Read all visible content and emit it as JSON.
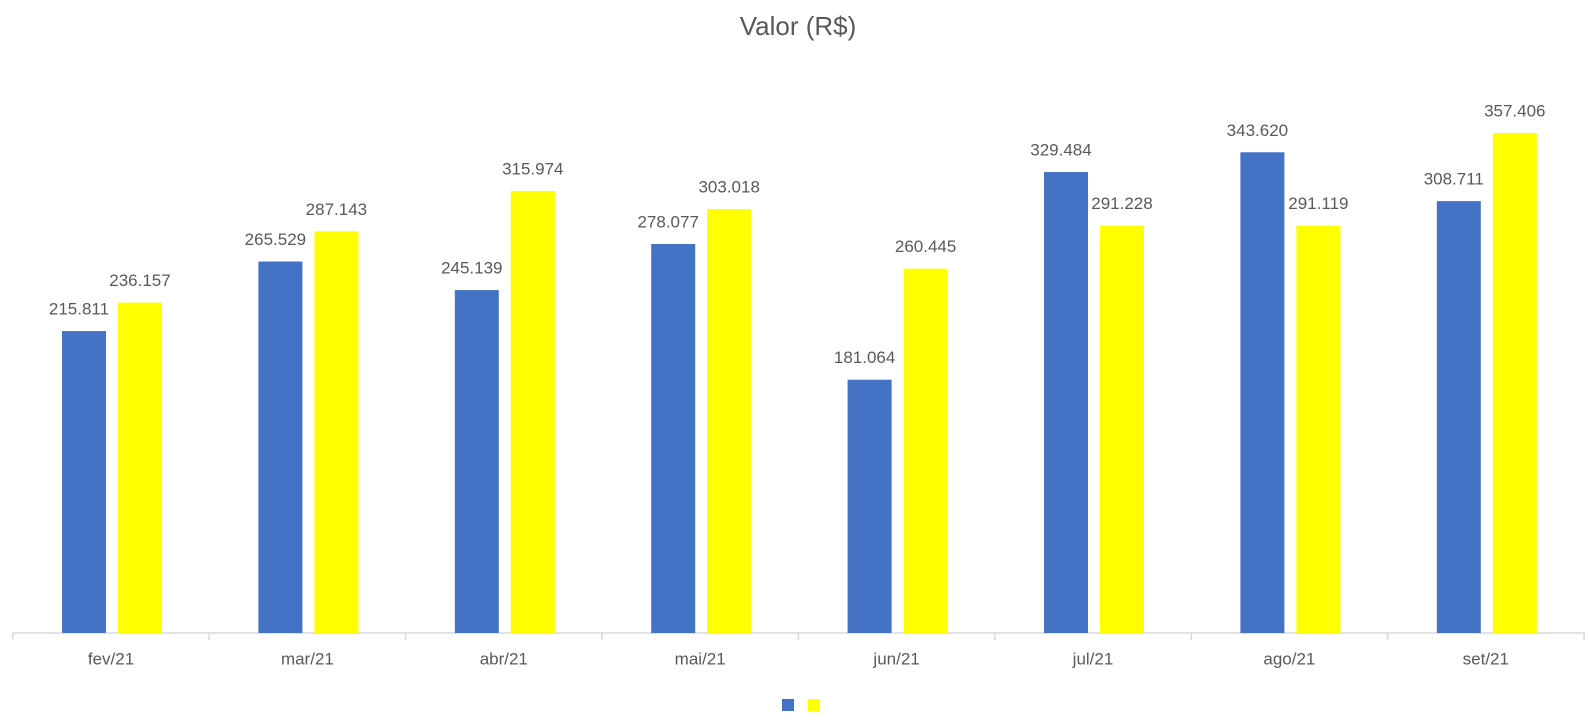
{
  "chart_data": {
    "type": "bar",
    "title": "Valor (R$)",
    "categories": [
      "fev/21",
      "mar/21",
      "abr/21",
      "mai/21",
      "jun/21",
      "jul/21",
      "ago/21",
      "set/21"
    ],
    "series": [
      {
        "color": "#4472c4",
        "values": [
          215811,
          265529,
          245139,
          278077,
          181064,
          329484,
          343620,
          308711
        ],
        "value_labels": [
          "215.811",
          "265.529",
          "245.139",
          "278.077",
          "181.064",
          "329.484",
          "343.620",
          "308.711"
        ]
      },
      {
        "color": "#ffff00",
        "values": [
          236157,
          287143,
          315974,
          303018,
          260445,
          291228,
          291119,
          357406
        ],
        "value_labels": [
          "236.157",
          "287.143",
          "315.974",
          "303.018",
          "260.445",
          "291.228",
          "291.119",
          "357.406"
        ]
      }
    ]
  }
}
